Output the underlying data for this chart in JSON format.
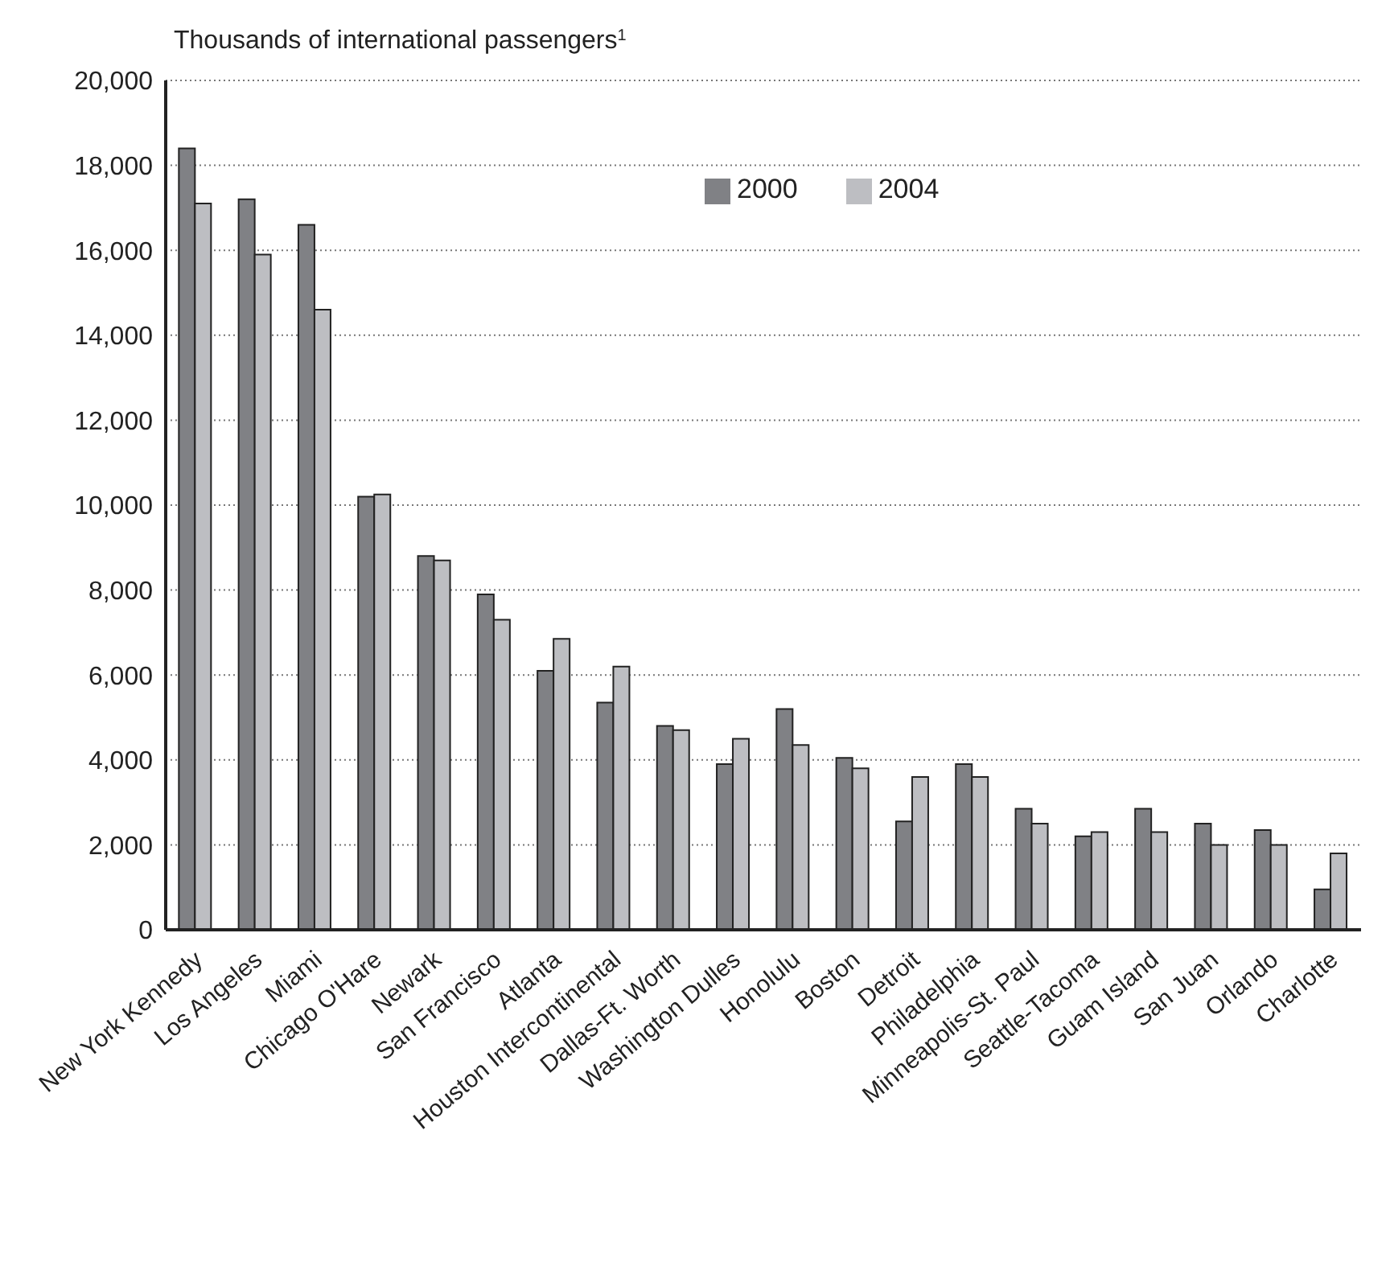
{
  "chart_data": {
    "type": "bar",
    "ylabel": "Thousands of international passengers$^{1}$",
    "categories": [
      "New York Kennedy",
      "Los Angeles",
      "Miami",
      "Chicago O'Hare",
      "Newark",
      "San Francisco",
      "Atlanta",
      "Houston Intercontinental",
      "Dallas-Ft. Worth",
      "Washington Dulles",
      "Honolulu",
      "Boston",
      "Detroit",
      "Philadelphia",
      "Minneapolis-St. Paul",
      "Seattle-Tacoma",
      "Guam Island",
      "San Juan",
      "Orlando",
      "Charlotte"
    ],
    "series": [
      {
        "name": "2000",
        "color": "#808185",
        "values": [
          18400,
          17200,
          16600,
          10200,
          8800,
          7900,
          6100,
          5350,
          4800,
          3900,
          5200,
          4050,
          2550,
          3900,
          2850,
          2200,
          2850,
          2500,
          2350,
          950
        ]
      },
      {
        "name": "2004",
        "color": "#bdbec2",
        "values": [
          17100,
          15900,
          14600,
          10250,
          8700,
          7300,
          6850,
          6200,
          4700,
          4500,
          4350,
          3800,
          3600,
          3600,
          2500,
          2300,
          2300,
          2000,
          2000,
          1800
        ]
      }
    ],
    "ylim": [
      0,
      20000
    ],
    "yticks": [
      0,
      {
        "value": 2000,
        "label": "2,000"
      },
      {
        "value": 4000,
        "label": "4,000"
      },
      {
        "value": 6000,
        "label": "6,000"
      },
      {
        "value": 8000,
        "label": "8,000"
      },
      {
        "value": 10000,
        "label": "10,000"
      },
      {
        "value": 12000,
        "label": "12,000"
      },
      {
        "value": 14000,
        "label": "14,000"
      },
      {
        "value": 16000,
        "label": "16,000"
      },
      {
        "value": 18000,
        "label": "18,000"
      },
      {
        "value": 20000,
        "label": "20,000"
      }
    ],
    "grid": "y",
    "legend": "top"
  }
}
